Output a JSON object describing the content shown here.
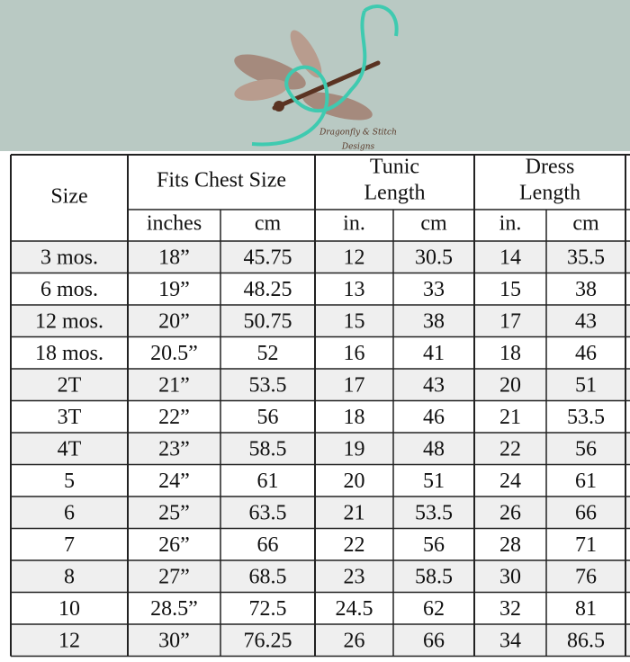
{
  "logo": {
    "line1": "Dragonfly & Stitch",
    "line2": "Designs"
  },
  "table": {
    "header": {
      "size": "Size",
      "chest": "Fits Chest Size",
      "tunic": [
        "Tunic",
        "Length"
      ],
      "dress": [
        "Dress",
        "Length"
      ],
      "sub": [
        "inches",
        "cm",
        "in.",
        "cm",
        "in.",
        "cm"
      ]
    },
    "rows": [
      [
        "3 mos.",
        "18”",
        "45.75",
        "12",
        "30.5",
        "14",
        "35.5"
      ],
      [
        "6 mos.",
        "19”",
        "48.25",
        "13",
        "33",
        "15",
        "38"
      ],
      [
        "12 mos.",
        "20”",
        "50.75",
        "15",
        "38",
        "17",
        "43"
      ],
      [
        "18 mos.",
        "20.5”",
        "52",
        "16",
        "41",
        "18",
        "46"
      ],
      [
        "2T",
        "21”",
        "53.5",
        "17",
        "43",
        "20",
        "51"
      ],
      [
        "3T",
        "22”",
        "56",
        "18",
        "46",
        "21",
        "53.5"
      ],
      [
        "4T",
        "23”",
        "58.5",
        "19",
        "48",
        "22",
        "56"
      ],
      [
        "5",
        "24”",
        "61",
        "20",
        "51",
        "24",
        "61"
      ],
      [
        "6",
        "25”",
        "63.5",
        "21",
        "53.5",
        "26",
        "66"
      ],
      [
        "7",
        "26”",
        "66",
        "22",
        "56",
        "28",
        "71"
      ],
      [
        "8",
        "27”",
        "68.5",
        "23",
        "58.5",
        "30",
        "76"
      ],
      [
        "10",
        "28.5”",
        "72.5",
        "24.5",
        "62",
        "32",
        "81"
      ],
      [
        "12",
        "30”",
        "76.25",
        "26",
        "66",
        "34",
        "86.5"
      ]
    ]
  }
}
